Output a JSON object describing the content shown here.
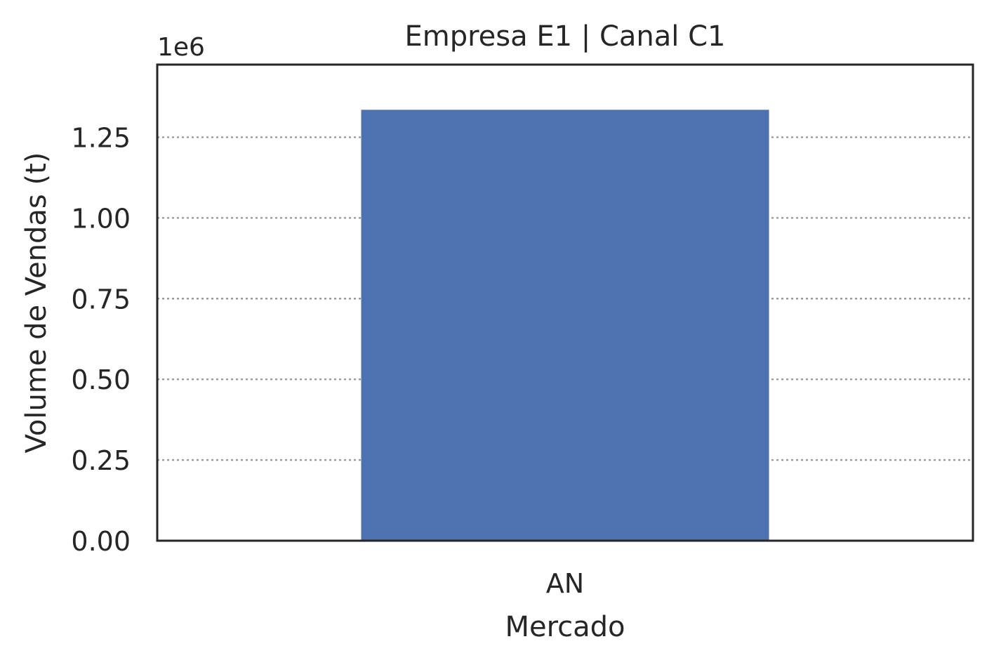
{
  "chart_data": {
    "type": "bar",
    "title": "Empresa E1 | Canal C1",
    "xlabel": "Mercado",
    "ylabel": "Volume de Vendas (t)",
    "y_offset_label": "1e6",
    "y_scale_factor": 1000000,
    "categories": [
      "AN"
    ],
    "values": [
      1335000
    ],
    "ylim": [
      0,
      1475000
    ],
    "y_ticks": [
      0,
      250000,
      500000,
      750000,
      1000000,
      1250000
    ],
    "y_tick_labels": [
      "0.00",
      "0.25",
      "0.50",
      "0.75",
      "1.00",
      "1.25"
    ],
    "grid": {
      "axis": "y",
      "style": "dotted"
    },
    "colors": {
      "bar": "#4c72b0",
      "grid": "#999999",
      "axis": "#262626",
      "text": "#262626"
    }
  }
}
